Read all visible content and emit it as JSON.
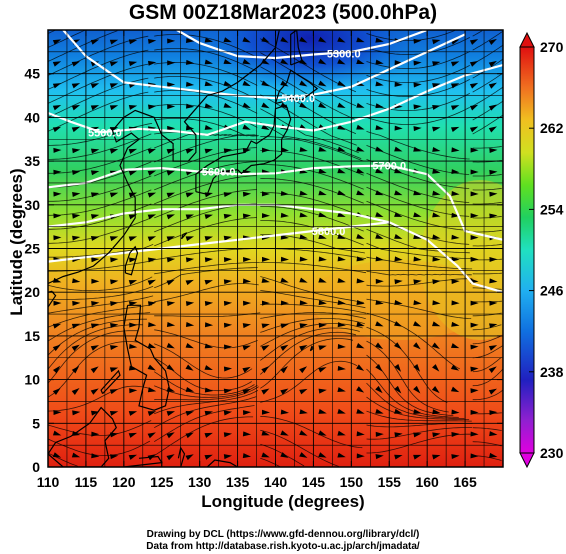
{
  "title": "GSM 00Z18Mar2023 (500.0hPa)",
  "xlabel": "Longitude (degrees)",
  "ylabel": "Latitude  (degrees)",
  "credits": {
    "line1": "Drawing by DCL (https://www.gfd-dennou.org/library/dcl/)",
    "line2": "Data from http://database.rish.kyoto-u.ac.jp/arch/jmadata/"
  },
  "map": {
    "lon_range": [
      110,
      170
    ],
    "lat_range": [
      0,
      50
    ],
    "x_ticks": [
      "110",
      "115",
      "120",
      "125",
      "130",
      "135",
      "140",
      "145",
      "150",
      "155",
      "160",
      "165"
    ],
    "y_ticks": [
      "0",
      "5",
      "10",
      "15",
      "20",
      "25",
      "30",
      "35",
      "40",
      "45"
    ],
    "grid": true,
    "background": "temperature shading with wind streamlines and geopotential height contours",
    "contour_labels": [
      {
        "text": "5300.0",
        "lon": 149,
        "lat": 47.3
      },
      {
        "text": "5400.0",
        "lon": 143,
        "lat": 42.2
      },
      {
        "text": "5500.0",
        "lon": 117.5,
        "lat": 38.3
      },
      {
        "text": "5600.0",
        "lon": 132.5,
        "lat": 33.8
      },
      {
        "text": "5700.0",
        "lon": 155,
        "lat": 34.5
      },
      {
        "text": "5800.0",
        "lon": 147,
        "lat": 27.0
      }
    ]
  },
  "colorbar": {
    "min": 230,
    "max": 270,
    "ticks": [
      "270",
      "262",
      "254",
      "246",
      "238",
      "230"
    ],
    "colors": [
      "#e000e0",
      "#7030c0",
      "#1040d0",
      "#1080e0",
      "#20c0f0",
      "#20e0b0",
      "#20d060",
      "#70e020",
      "#d0e020",
      "#f0c020",
      "#f08020",
      "#f04020",
      "#e01010"
    ]
  }
}
